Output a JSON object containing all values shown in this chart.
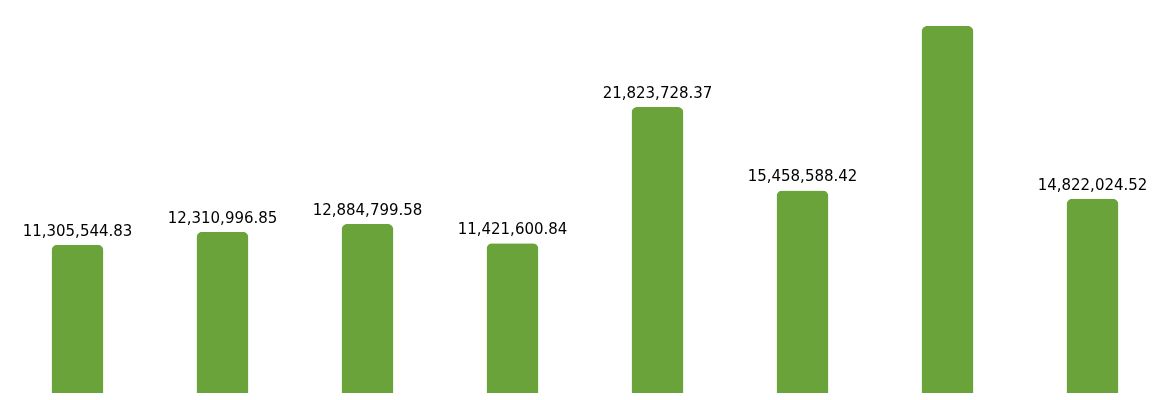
{
  "chart_data": {
    "type": "bar",
    "categories": [
      null,
      null,
      null,
      null,
      null,
      null,
      null,
      null
    ],
    "values": [
      11305544.83,
      12310996.85,
      12884799.58,
      11421600.84,
      21823728.37,
      15458588.42,
      28000000,
      14822024.52
    ],
    "value_labels": [
      "11,305,544.83",
      "12,310,996.85",
      "12,884,799.58",
      "11,421,600.84",
      "21,823,728.37",
      "15,458,588.42",
      null,
      "14,822,024.52"
    ],
    "color": "#6aa33a",
    "grid": false
  }
}
